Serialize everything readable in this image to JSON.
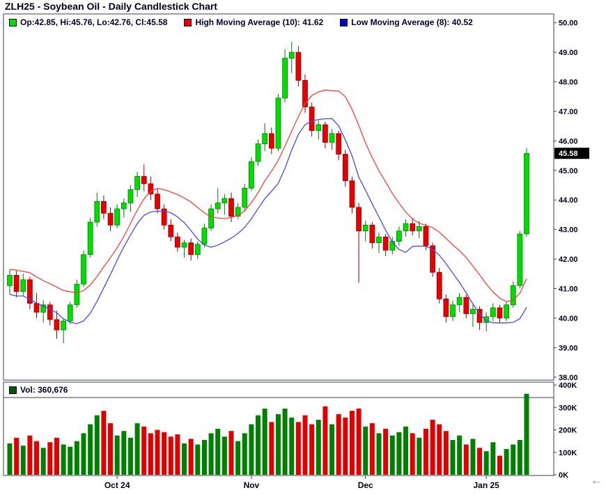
{
  "header": {
    "title": "ZLH25 - Soybean Oil - Daily Candlestick Chart"
  },
  "legend": {
    "ohlc": {
      "label": "Op:42.85, Hi:45.76, Lo:42.76, Cl:45.58",
      "swatch_color": "#00dd00"
    },
    "high_ma": {
      "label": "High Moving Average (10): 41.62",
      "swatch_color": "#e80000"
    },
    "low_ma": {
      "label": "Low Moving Average (8): 40.52",
      "swatch_color": "#0000cc"
    }
  },
  "volume_legend": {
    "label": "Vol: 360,676",
    "swatch_color": "#005a00"
  },
  "price_axis_labels": [
    "50.00",
    "49.00",
    "48.00",
    "47.00",
    "46.00",
    "45.00",
    "44.00",
    "43.00",
    "42.00",
    "41.00",
    "40.00",
    "39.00",
    "38.00"
  ],
  "last_price_label": "45.58",
  "volume_axis_labels": [
    "400K",
    "300K",
    "200K",
    "100K",
    "0K"
  ],
  "back_arrow": "←",
  "chart_data": {
    "type": "candlestick",
    "symbol": "ZLH25",
    "title": "ZLH25 - Soybean Oil - Daily Candlestick Chart",
    "price_range": [
      38.0,
      50.0
    ],
    "last": {
      "open": 42.85,
      "high": 45.76,
      "low": 42.76,
      "close": 45.58
    },
    "volume_last": 360676,
    "overlays": [
      {
        "name": "High Moving Average (10)",
        "period": 10,
        "source": "high",
        "value": 41.62,
        "color": "#f34040"
      },
      {
        "name": "Low Moving Average (8)",
        "period": 8,
        "source": "low",
        "value": 40.52,
        "color": "#4848e8"
      }
    ],
    "x_ticks": [
      {
        "label": "Oct 24",
        "index": 16
      },
      {
        "label": "Nov",
        "index": 36
      },
      {
        "label": "Dec",
        "index": 53
      },
      {
        "label": "Jan 25",
        "index": 71
      }
    ],
    "volume_axis": {
      "max_k": 400
    },
    "colors": {
      "frame": "#3a3f52",
      "text": "#000014",
      "up": "#00dd00",
      "up_stroke": "#007a00",
      "down": "#e80000",
      "down_stroke": "#8f0000",
      "vol_up": "#008000",
      "vol_down": "#e00000"
    },
    "candles": [
      [
        41.1,
        41.65,
        40.8,
        41.45
      ],
      [
        41.45,
        41.6,
        40.7,
        40.9
      ],
      [
        40.9,
        41.5,
        40.75,
        41.3
      ],
      [
        41.3,
        41.4,
        40.3,
        40.5
      ],
      [
        40.5,
        40.85,
        40.0,
        40.2
      ],
      [
        40.2,
        40.6,
        39.85,
        40.45
      ],
      [
        40.45,
        40.55,
        39.75,
        39.95
      ],
      [
        39.95,
        40.25,
        39.3,
        39.6
      ],
      [
        39.6,
        40.0,
        39.15,
        39.9
      ],
      [
        39.9,
        40.55,
        39.8,
        40.45
      ],
      [
        40.45,
        41.3,
        40.35,
        41.15
      ],
      [
        41.15,
        42.3,
        41.05,
        42.15
      ],
      [
        42.15,
        43.4,
        42.05,
        43.25
      ],
      [
        43.25,
        44.25,
        43.1,
        43.95
      ],
      [
        43.95,
        44.15,
        43.35,
        43.55
      ],
      [
        43.55,
        43.75,
        42.95,
        43.15
      ],
      [
        43.15,
        43.85,
        43.05,
        43.7
      ],
      [
        43.7,
        44.05,
        43.4,
        43.9
      ],
      [
        43.9,
        44.5,
        43.6,
        44.35
      ],
      [
        44.35,
        44.95,
        44.1,
        44.8
      ],
      [
        44.8,
        45.2,
        44.3,
        44.55
      ],
      [
        44.55,
        44.8,
        44.0,
        44.2
      ],
      [
        44.2,
        44.4,
        43.55,
        43.7
      ],
      [
        43.7,
        43.85,
        43.0,
        43.15
      ],
      [
        43.15,
        43.35,
        42.6,
        42.75
      ],
      [
        42.75,
        42.9,
        42.25,
        42.4
      ],
      [
        42.4,
        42.65,
        42.05,
        42.55
      ],
      [
        42.55,
        42.7,
        41.95,
        42.15
      ],
      [
        42.15,
        42.6,
        42.0,
        42.5
      ],
      [
        42.5,
        43.2,
        42.4,
        43.05
      ],
      [
        43.05,
        43.85,
        42.95,
        43.7
      ],
      [
        43.7,
        44.4,
        43.55,
        43.9
      ],
      [
        43.9,
        44.2,
        43.5,
        44.05
      ],
      [
        44.05,
        44.25,
        43.25,
        43.45
      ],
      [
        43.45,
        43.9,
        43.35,
        43.75
      ],
      [
        43.75,
        44.55,
        43.6,
        44.4
      ],
      [
        44.4,
        45.45,
        44.3,
        45.3
      ],
      [
        45.3,
        46.05,
        45.15,
        45.9
      ],
      [
        45.9,
        46.6,
        45.65,
        46.25
      ],
      [
        46.25,
        46.45,
        45.55,
        45.75
      ],
      [
        45.75,
        47.6,
        45.65,
        47.45
      ],
      [
        47.45,
        49.1,
        47.3,
        48.8
      ],
      [
        48.8,
        49.35,
        48.3,
        49.0
      ],
      [
        49.0,
        49.2,
        47.85,
        48.05
      ],
      [
        48.05,
        48.25,
        46.95,
        47.15
      ],
      [
        47.15,
        47.3,
        46.15,
        46.35
      ],
      [
        46.35,
        46.7,
        46.05,
        46.55
      ],
      [
        46.55,
        46.65,
        45.75,
        45.95
      ],
      [
        45.95,
        46.4,
        45.7,
        46.25
      ],
      [
        46.25,
        46.35,
        45.35,
        45.55
      ],
      [
        45.55,
        45.7,
        44.45,
        44.65
      ],
      [
        44.65,
        44.8,
        43.55,
        43.75
      ],
      [
        43.75,
        43.9,
        41.2,
        42.95
      ],
      [
        42.95,
        43.3,
        42.6,
        43.15
      ],
      [
        43.15,
        43.25,
        42.35,
        42.55
      ],
      [
        42.55,
        42.9,
        42.2,
        42.75
      ],
      [
        42.75,
        42.85,
        42.1,
        42.3
      ],
      [
        42.3,
        42.75,
        42.15,
        42.6
      ],
      [
        42.6,
        43.1,
        42.45,
        42.95
      ],
      [
        42.95,
        43.35,
        42.75,
        43.2
      ],
      [
        43.2,
        43.4,
        42.8,
        42.95
      ],
      [
        42.95,
        43.3,
        42.7,
        43.1
      ],
      [
        43.1,
        43.2,
        42.3,
        42.45
      ],
      [
        42.45,
        42.55,
        41.4,
        41.55
      ],
      [
        41.55,
        41.7,
        40.5,
        40.65
      ],
      [
        40.65,
        40.8,
        39.85,
        40.05
      ],
      [
        40.05,
        40.6,
        39.9,
        40.45
      ],
      [
        40.45,
        40.85,
        40.2,
        40.7
      ],
      [
        40.7,
        40.8,
        40.0,
        40.15
      ],
      [
        40.15,
        40.45,
        39.7,
        40.3
      ],
      [
        40.3,
        40.4,
        39.6,
        39.85
      ],
      [
        39.85,
        40.2,
        39.55,
        40.05
      ],
      [
        40.05,
        40.5,
        39.9,
        40.35
      ],
      [
        40.35,
        40.45,
        39.85,
        40.0
      ],
      [
        40.0,
        40.55,
        39.9,
        40.45
      ],
      [
        40.45,
        41.25,
        40.35,
        41.1
      ],
      [
        41.1,
        42.95,
        41.0,
        42.85
      ],
      [
        42.85,
        45.76,
        42.76,
        45.58
      ]
    ],
    "volumes_k": [
      140,
      165,
      130,
      175,
      150,
      120,
      145,
      165,
      135,
      125,
      150,
      185,
      225,
      265,
      285,
      230,
      175,
      195,
      165,
      230,
      215,
      185,
      200,
      190,
      170,
      180,
      140,
      160,
      135,
      155,
      185,
      205,
      170,
      195,
      150,
      185,
      225,
      265,
      295,
      235,
      270,
      295,
      255,
      235,
      265,
      225,
      245,
      305,
      225,
      270,
      255,
      285,
      295,
      215,
      230,
      185,
      205,
      175,
      190,
      215,
      185,
      165,
      205,
      245,
      225,
      195,
      155,
      175,
      135,
      160,
      120,
      105,
      145,
      85,
      115,
      135,
      155,
      360.676
    ]
  }
}
